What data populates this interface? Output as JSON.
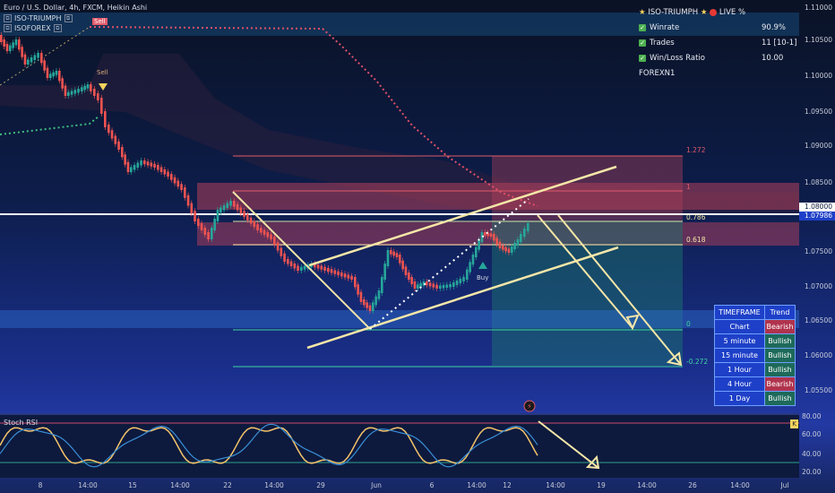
{
  "header": {
    "symbol_line": "Euro / U.S. Dollar, 4h, FXCM, Heikin Ashi",
    "indicators": [
      "ISO-TRIUMPH",
      "ISOFOREX"
    ]
  },
  "stats": {
    "title": "ISO-TRIUMPH",
    "live": "LIVE %",
    "rows": [
      {
        "label": "Winrate",
        "value": "90.9%"
      },
      {
        "label": "Trades",
        "value": "11 [10-1]"
      },
      {
        "label": "Win/Loss Ratio",
        "value": "10.00"
      }
    ],
    "footer": "FOREXN1"
  },
  "timeframe_table": {
    "headers": [
      "TIMEFRAME",
      "Trend"
    ],
    "rows": [
      {
        "tf": "Chart",
        "trend": "Bearish",
        "state": "bear"
      },
      {
        "tf": "5 minute",
        "trend": "Bullish",
        "state": "bull"
      },
      {
        "tf": "15 minute",
        "trend": "Bullish",
        "state": "bull"
      },
      {
        "tf": "1 Hour",
        "trend": "Bullish",
        "state": "bull"
      },
      {
        "tf": "4 Hour",
        "trend": "Bearish",
        "state": "bear"
      },
      {
        "tf": "1 Day",
        "trend": "Bullish",
        "state": "bull"
      }
    ]
  },
  "price_axis": [
    "1.11000",
    "1.10500",
    "1.10000",
    "1.09500",
    "1.09000",
    "1.08500",
    "1.08000",
    "1.07500",
    "1.07000",
    "1.06500",
    "1.06000",
    "1.05500"
  ],
  "price_tags": {
    "current": "1.08000",
    "last": "1.07986"
  },
  "fib_levels": [
    "1.272",
    "1",
    "0.786",
    "0.618",
    "0",
    "-0.272"
  ],
  "time_axis": [
    "8",
    "14:00",
    "15",
    "14:00",
    "22",
    "14:00",
    "29",
    "Jun",
    "6",
    "14:00",
    "12",
    "14:00",
    "19",
    "14:00",
    "26",
    "14:00",
    "Jul"
  ],
  "signals": {
    "sell": "Sell",
    "buy": "Buy"
  },
  "stoch": {
    "label": "Stoch RSI",
    "axis": [
      "80.00",
      "60.00",
      "40.00",
      "20.00"
    ],
    "badge": "K"
  },
  "colors": {
    "bull": "#26a69a",
    "bear": "#ef5350",
    "fib": "#f5e6a8",
    "accent": "#f4d35e"
  }
}
